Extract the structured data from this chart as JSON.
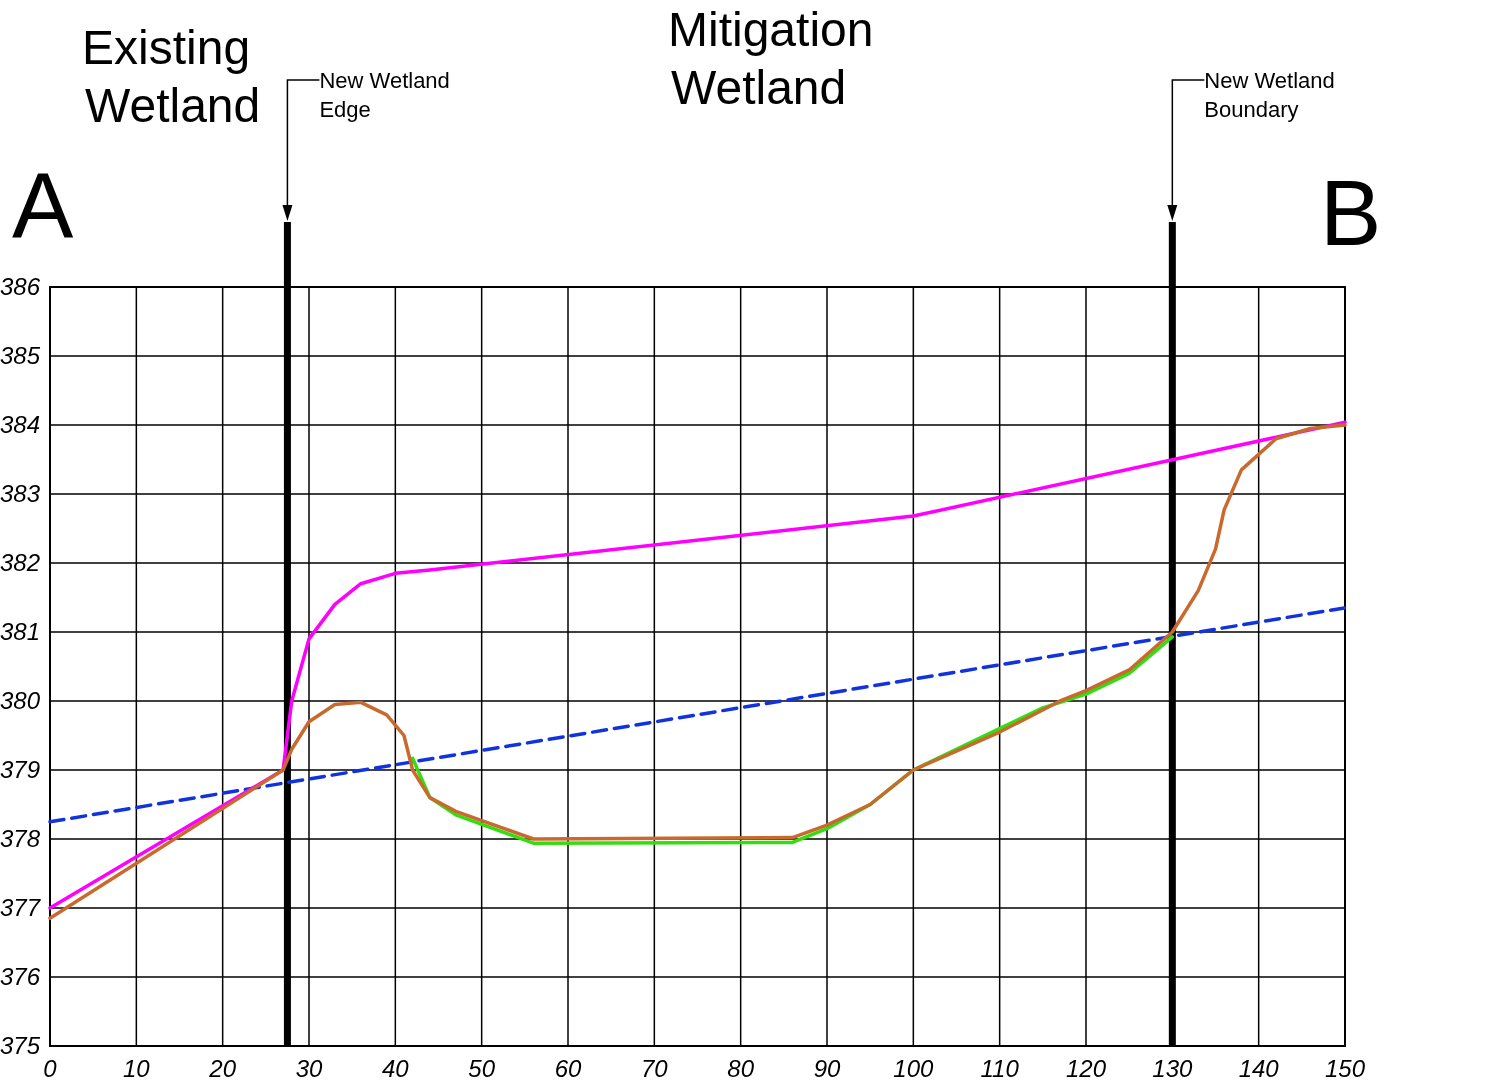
{
  "chart_data": {
    "type": "line",
    "xlim": [
      0,
      150
    ],
    "ylim": [
      375,
      386
    ],
    "xticks": [
      0,
      10,
      20,
      30,
      40,
      50,
      60,
      70,
      80,
      90,
      100,
      110,
      120,
      130,
      140,
      150
    ],
    "yticks": [
      375,
      376,
      377,
      378,
      379,
      380,
      381,
      382,
      383,
      384,
      385,
      386
    ],
    "grid": true,
    "marker": "none",
    "annotations": [
      "A",
      "Existing Wetland",
      "Mitigation Wetland",
      "B",
      "New Wetland Edge",
      "New Wetland Boundary"
    ],
    "ref_lines": [
      {
        "axis": "x",
        "value": 27.5,
        "color": "#000000"
      },
      {
        "axis": "x",
        "value": 130,
        "color": "#000000"
      }
    ],
    "series": [
      {
        "color": "#1133dd",
        "line_style": "dashed",
        "x": [
          0,
          150
        ],
        "values": [
          378.25,
          381.35
        ]
      },
      {
        "color": "#ff00ff",
        "line_style": "solid",
        "x": [
          0,
          27,
          27.5,
          28,
          30,
          33,
          36,
          40,
          44,
          100,
          150
        ],
        "values": [
          377,
          379,
          379.5,
          380,
          380.9,
          381.4,
          381.7,
          381.85,
          381.9,
          382.68,
          384.04
        ]
      },
      {
        "color": "#33dd11",
        "line_style": "solid",
        "x": [
          42,
          44,
          47,
          56,
          86,
          90,
          95,
          99,
          100,
          115,
          120,
          125,
          130
        ],
        "values": [
          379.17,
          378.6,
          378.35,
          377.94,
          377.95,
          378.15,
          378.5,
          378.9,
          379,
          379.9,
          380.1,
          380.4,
          380.93
        ]
      },
      {
        "color": "#c8692d",
        "line_style": "solid",
        "x": [
          0,
          27,
          28,
          30,
          33,
          36,
          39,
          41,
          42,
          44,
          47,
          56,
          86,
          90,
          95,
          100,
          110,
          117,
          120,
          125,
          130,
          133,
          135,
          136,
          138,
          142,
          146,
          150
        ],
        "values": [
          376.85,
          379,
          379.3,
          379.7,
          379.95,
          379.98,
          379.8,
          379.5,
          379,
          378.6,
          378.4,
          378,
          378.02,
          378.2,
          378.5,
          379,
          379.55,
          380,
          380.15,
          380.45,
          381,
          381.6,
          382.2,
          382.77,
          383.35,
          383.8,
          383.95,
          384
        ]
      }
    ]
  }
}
